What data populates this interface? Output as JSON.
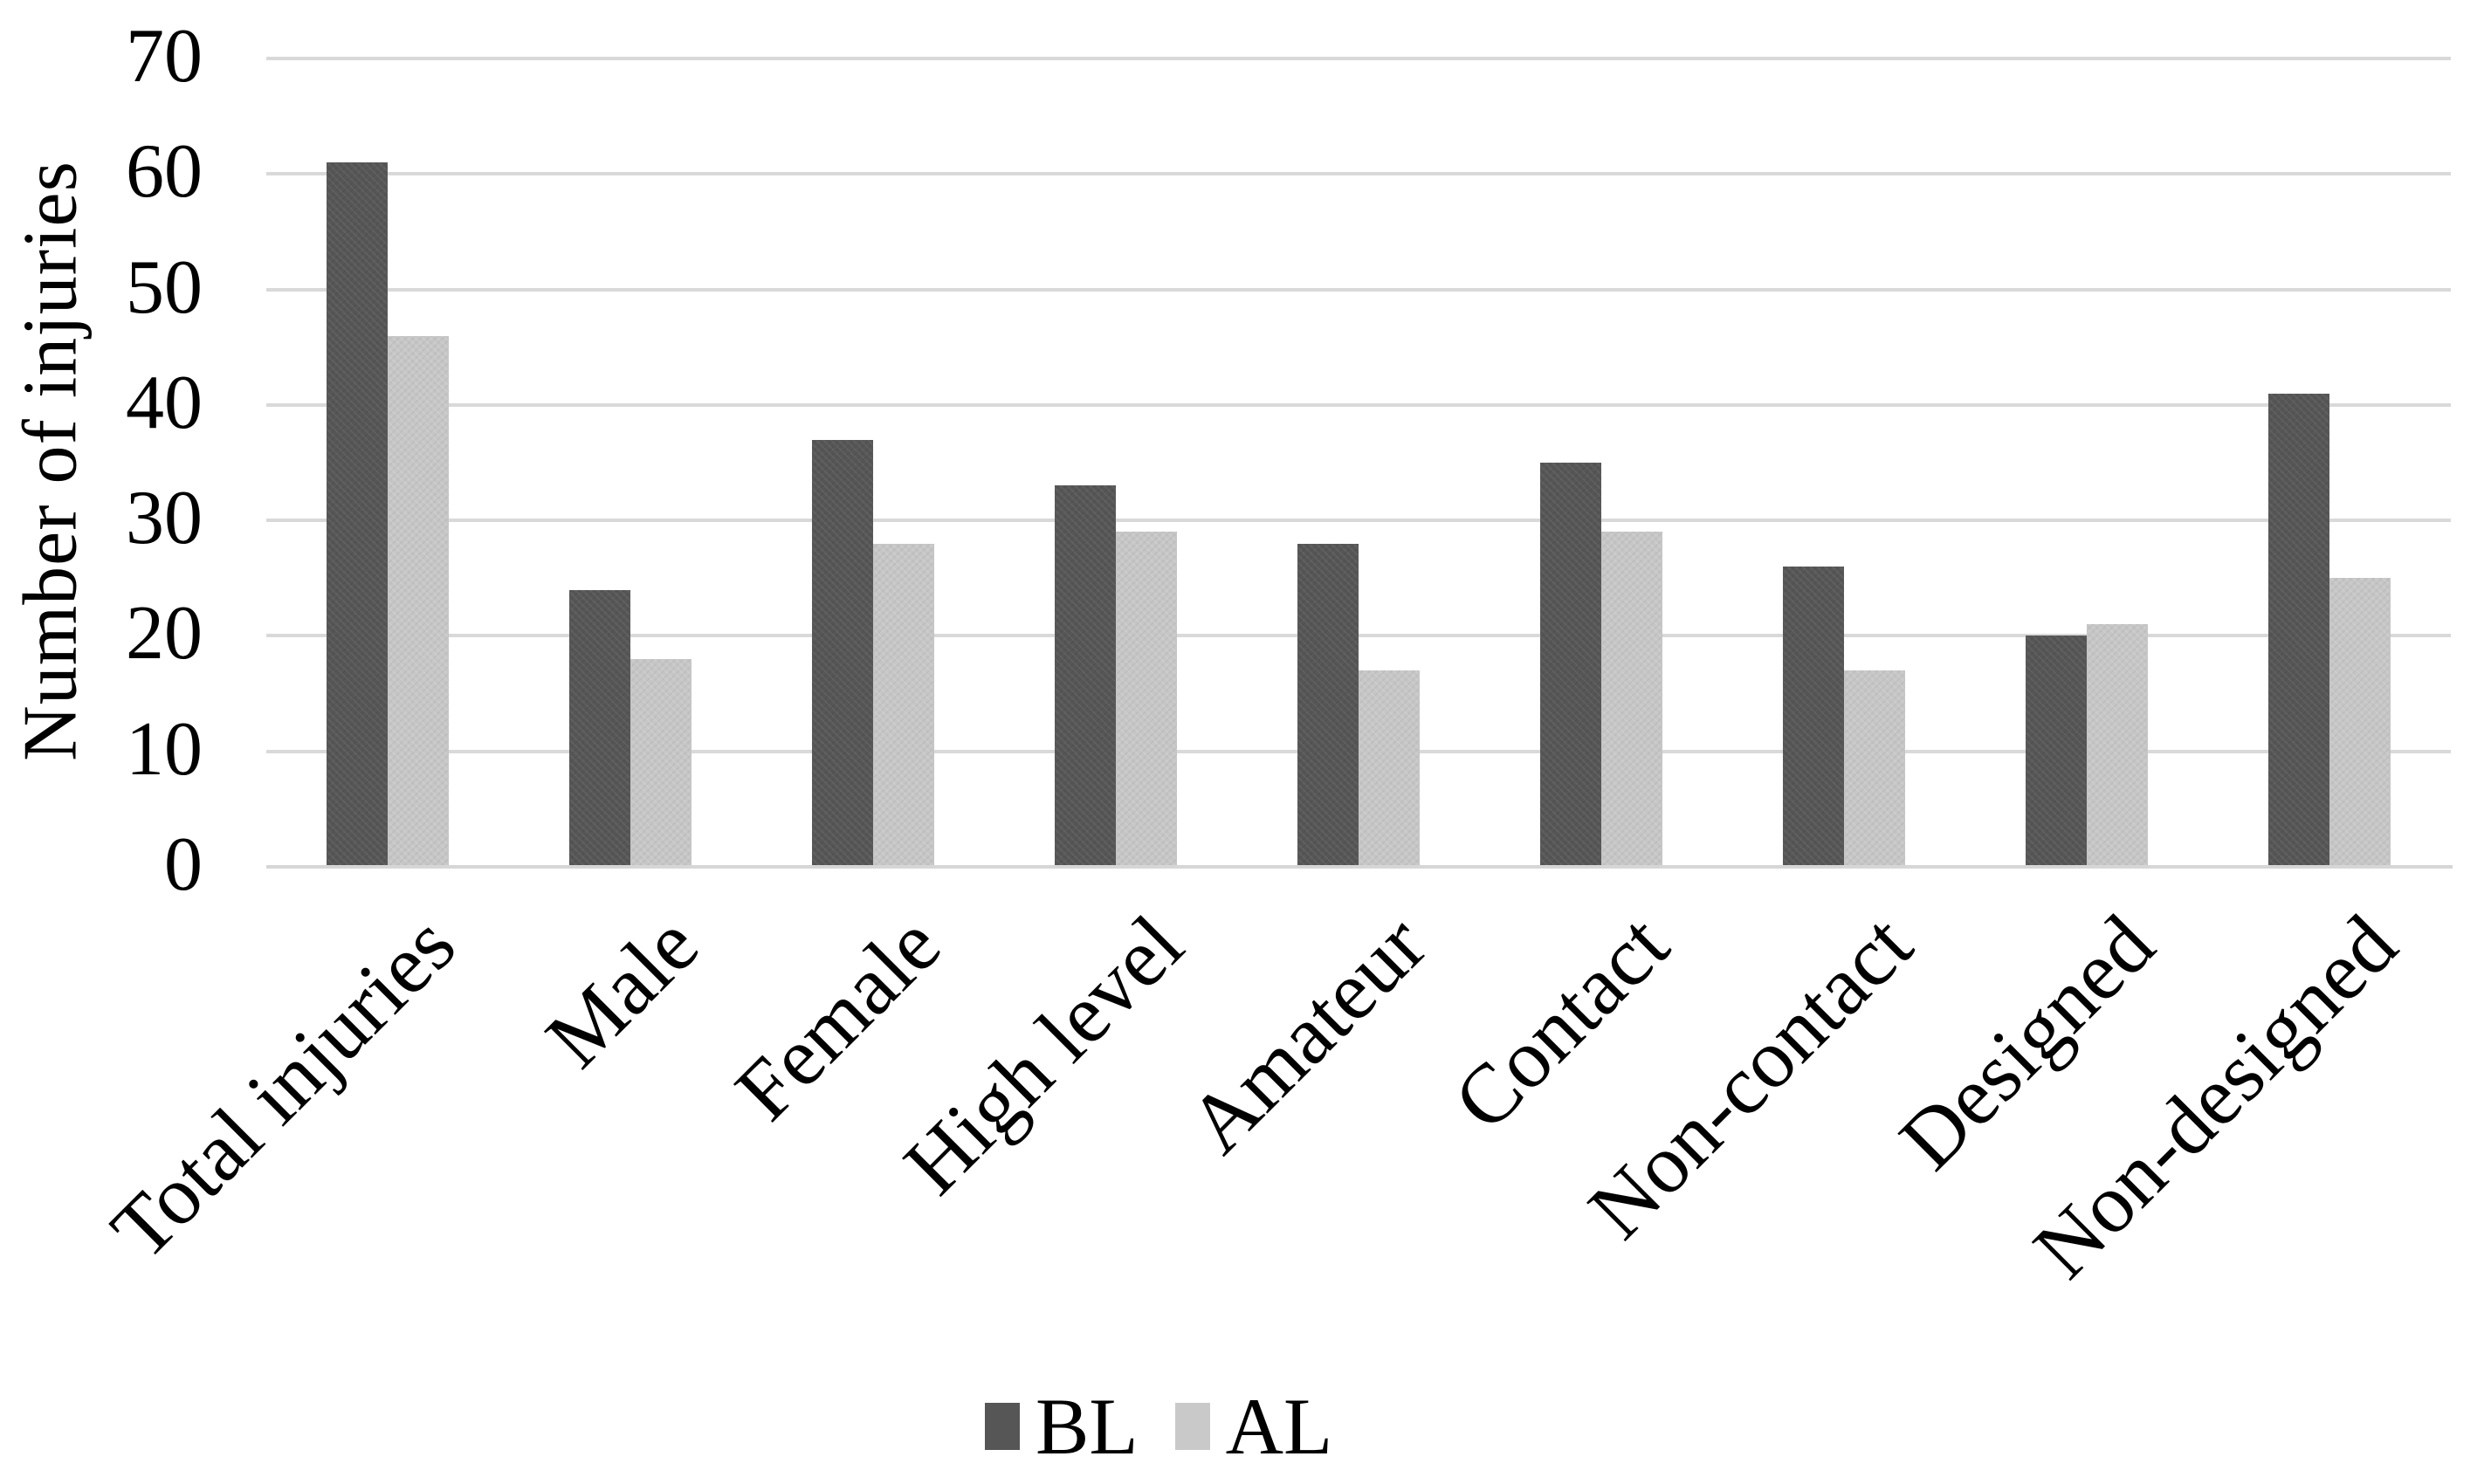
{
  "chart_data": {
    "type": "bar",
    "title": "",
    "ylabel": "Number of injuries",
    "xlabel": "",
    "categories": [
      "Total injuries",
      "Male",
      "Female",
      "High level",
      "Amateur",
      "Contact",
      "Non-contact",
      "Designed",
      "Non-designed"
    ],
    "series": [
      {
        "name": "BL",
        "color": "#565656",
        "values": [
          61,
          24,
          37,
          33,
          28,
          35,
          26,
          20,
          41
        ]
      },
      {
        "name": "AL",
        "color": "#c6c6c6",
        "values": [
          46,
          18,
          28,
          29,
          17,
          29,
          17,
          21,
          25
        ]
      }
    ],
    "ylim": [
      0,
      70
    ],
    "yticks": [
      0,
      10,
      20,
      30,
      40,
      50,
      60,
      70
    ],
    "grid": true,
    "legend_position": "bottom"
  },
  "colors": {
    "background": "#ffffff",
    "gridline": "#d9d9d9",
    "axis_line": "#d6d6d6",
    "text": "#000000",
    "series_bl": "#565656",
    "series_al": "#c6c6c6"
  }
}
